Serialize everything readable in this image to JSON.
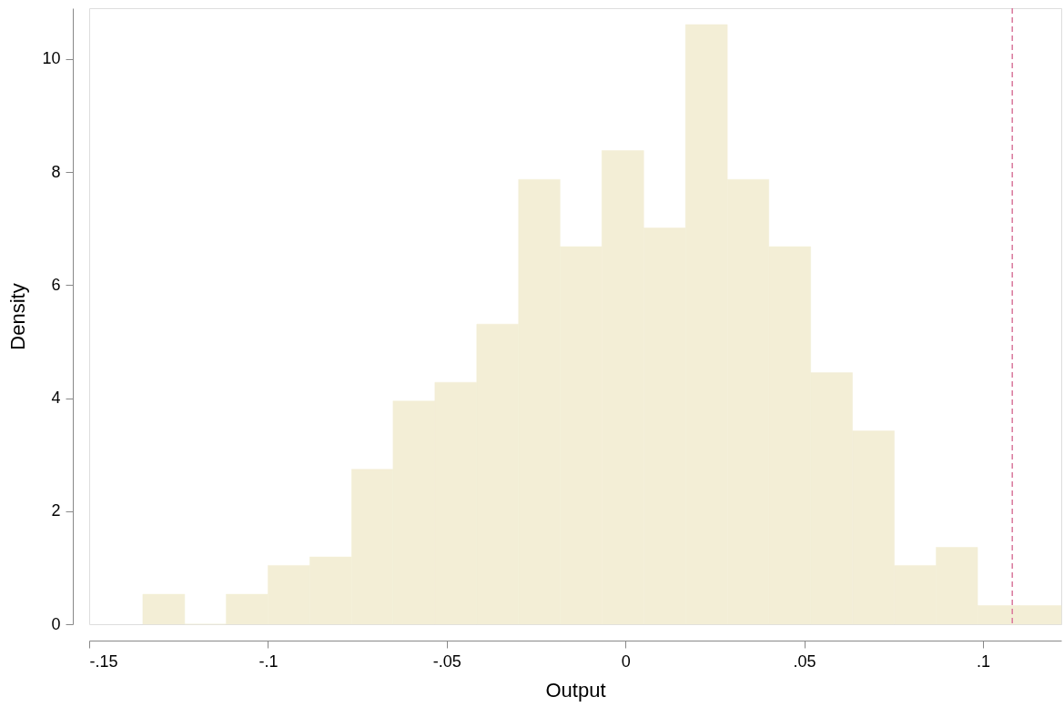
{
  "chart_data": {
    "type": "histogram",
    "xlabel": "Output",
    "ylabel": "Density",
    "bins": [
      -0.135,
      -0.1233,
      -0.1117,
      -0.1,
      -0.0883,
      -0.0766,
      -0.065,
      -0.0533,
      -0.0416,
      -0.0299,
      -0.0183,
      -0.0066,
      0.0051,
      0.0168,
      0.0285,
      0.0401,
      0.0518,
      0.0635,
      0.0752,
      0.0869,
      0.0985,
      0.1102,
      0.1219
    ],
    "values": [
      0.53,
      0,
      0.53,
      1.04,
      1.19,
      2.74,
      3.95,
      4.28,
      5.31,
      7.87,
      6.68,
      8.38,
      7.01,
      10.61,
      7.87,
      6.68,
      4.45,
      3.42,
      1.04,
      1.36,
      0.33,
      0.33
    ],
    "color": "#f3eed6",
    "xlim": [
      -0.15,
      0.1219
    ],
    "ylim": [
      0,
      10.9
    ],
    "xticks": [
      {
        "value": -0.15,
        "label": "-.15"
      },
      {
        "value": -0.1,
        "label": "-.1"
      },
      {
        "value": -0.05,
        "label": "-.05"
      },
      0,
      {
        "value": 0.05,
        "label": ".05"
      },
      {
        "value": 0.1,
        "label": ".1"
      }
    ],
    "yticks": [
      0,
      2,
      4,
      6,
      8,
      10
    ],
    "ref_lines": [
      {
        "axis": "x",
        "value": 0.1082,
        "color": "#d9789c",
        "line_style": "dashed"
      }
    ],
    "grid": false
  }
}
